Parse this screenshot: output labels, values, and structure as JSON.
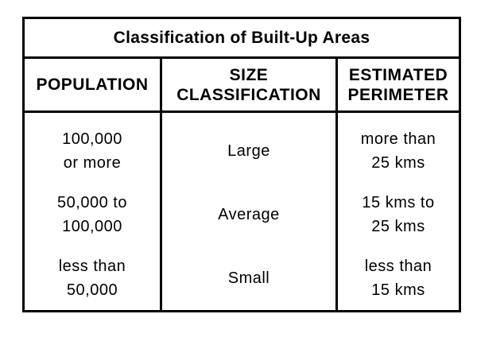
{
  "table": {
    "title": "Classification of Built-Up Areas",
    "headers": {
      "population": "POPULATION",
      "size_line1": "SIZE",
      "size_line2": "CLASSIFICATION",
      "perimeter_line1": "ESTIMATED",
      "perimeter_line2": "PERIMETER"
    },
    "rows": [
      {
        "population_line1": "100,000",
        "population_line2": "or more",
        "size": "Large",
        "perimeter_line1": "more than",
        "perimeter_line2": "25 kms"
      },
      {
        "population_line1": "50,000 to",
        "population_line2": "100,000",
        "size": "Average",
        "perimeter_line1": "15 kms to",
        "perimeter_line2": "25 kms"
      },
      {
        "population_line1": "less than",
        "population_line2": "50,000",
        "size": "Small",
        "perimeter_line1": "less than",
        "perimeter_line2": "15 kms"
      }
    ]
  }
}
